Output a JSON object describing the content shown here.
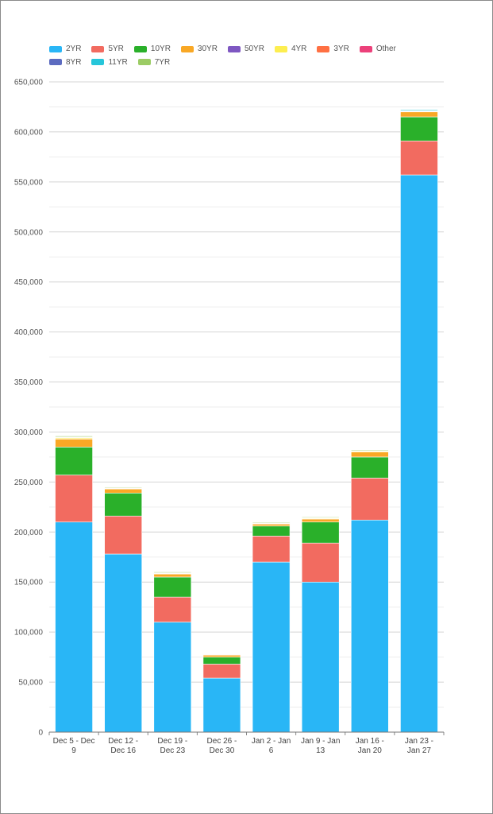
{
  "chart_data": {
    "type": "bar",
    "stacked": true,
    "title": "",
    "xlabel": "",
    "ylabel": "",
    "ylim": [
      0,
      650000
    ],
    "yticks": [
      0,
      50000,
      100000,
      150000,
      200000,
      250000,
      300000,
      350000,
      400000,
      450000,
      500000,
      550000,
      600000,
      650000
    ],
    "ytick_labels": [
      "0",
      "50,000",
      "100,000",
      "150,000",
      "200,000",
      "250,000",
      "300,000",
      "350,000",
      "400,000",
      "450,000",
      "500,000",
      "550,000",
      "600,000",
      "650,000"
    ],
    "grid": true,
    "legend_position": "top-left",
    "categories": [
      [
        "Dec 5 - Dec",
        "9"
      ],
      [
        "Dec 12 -",
        "Dec 16"
      ],
      [
        "Dec 19 -",
        "Dec 23"
      ],
      [
        "Dec 26 -",
        "Dec 30"
      ],
      [
        "Jan 2 - Jan",
        "6"
      ],
      [
        "Jan 9 - Jan",
        "13"
      ],
      [
        "Jan 16 -",
        "Jan 20"
      ],
      [
        "Jan 23 -",
        "Jan 27"
      ]
    ],
    "series": [
      {
        "name": "2YR",
        "color": "#29b6f6",
        "values": [
          210000,
          178000,
          110000,
          54000,
          170000,
          150000,
          212000,
          557000
        ]
      },
      {
        "name": "5YR",
        "color": "#f26b60",
        "values": [
          47000,
          38000,
          25000,
          14000,
          26000,
          39000,
          42000,
          34000
        ]
      },
      {
        "name": "10YR",
        "color": "#2ab02a",
        "values": [
          28000,
          23000,
          20000,
          7000,
          10000,
          21000,
          21000,
          24000
        ]
      },
      {
        "name": "30YR",
        "color": "#f9a825",
        "values": [
          8000,
          4000,
          3000,
          2000,
          2000,
          3000,
          5000,
          5000
        ]
      },
      {
        "name": "50YR",
        "color": "#7e57c2",
        "values": [
          0,
          0,
          0,
          0,
          0,
          0,
          0,
          0
        ]
      },
      {
        "name": "4YR",
        "color": "#fdee50",
        "values": [
          1000,
          500,
          500,
          400,
          500,
          600,
          700,
          500
        ]
      },
      {
        "name": "3YR",
        "color": "#ff7043",
        "values": [
          500,
          300,
          300,
          200,
          300,
          300,
          300,
          300
        ]
      },
      {
        "name": "Other",
        "color": "#ec407a",
        "values": [
          0,
          0,
          0,
          0,
          0,
          0,
          0,
          0
        ]
      },
      {
        "name": "8YR",
        "color": "#5c6bc0",
        "values": [
          400,
          300,
          300,
          200,
          300,
          300,
          300,
          300
        ]
      },
      {
        "name": "11YR",
        "color": "#26c6da",
        "values": [
          200,
          200,
          200,
          100,
          200,
          200,
          200,
          1000
        ]
      },
      {
        "name": "7YR",
        "color": "#9ccc65",
        "values": [
          900,
          700,
          800,
          300,
          700,
          700,
          800,
          400
        ]
      }
    ]
  }
}
